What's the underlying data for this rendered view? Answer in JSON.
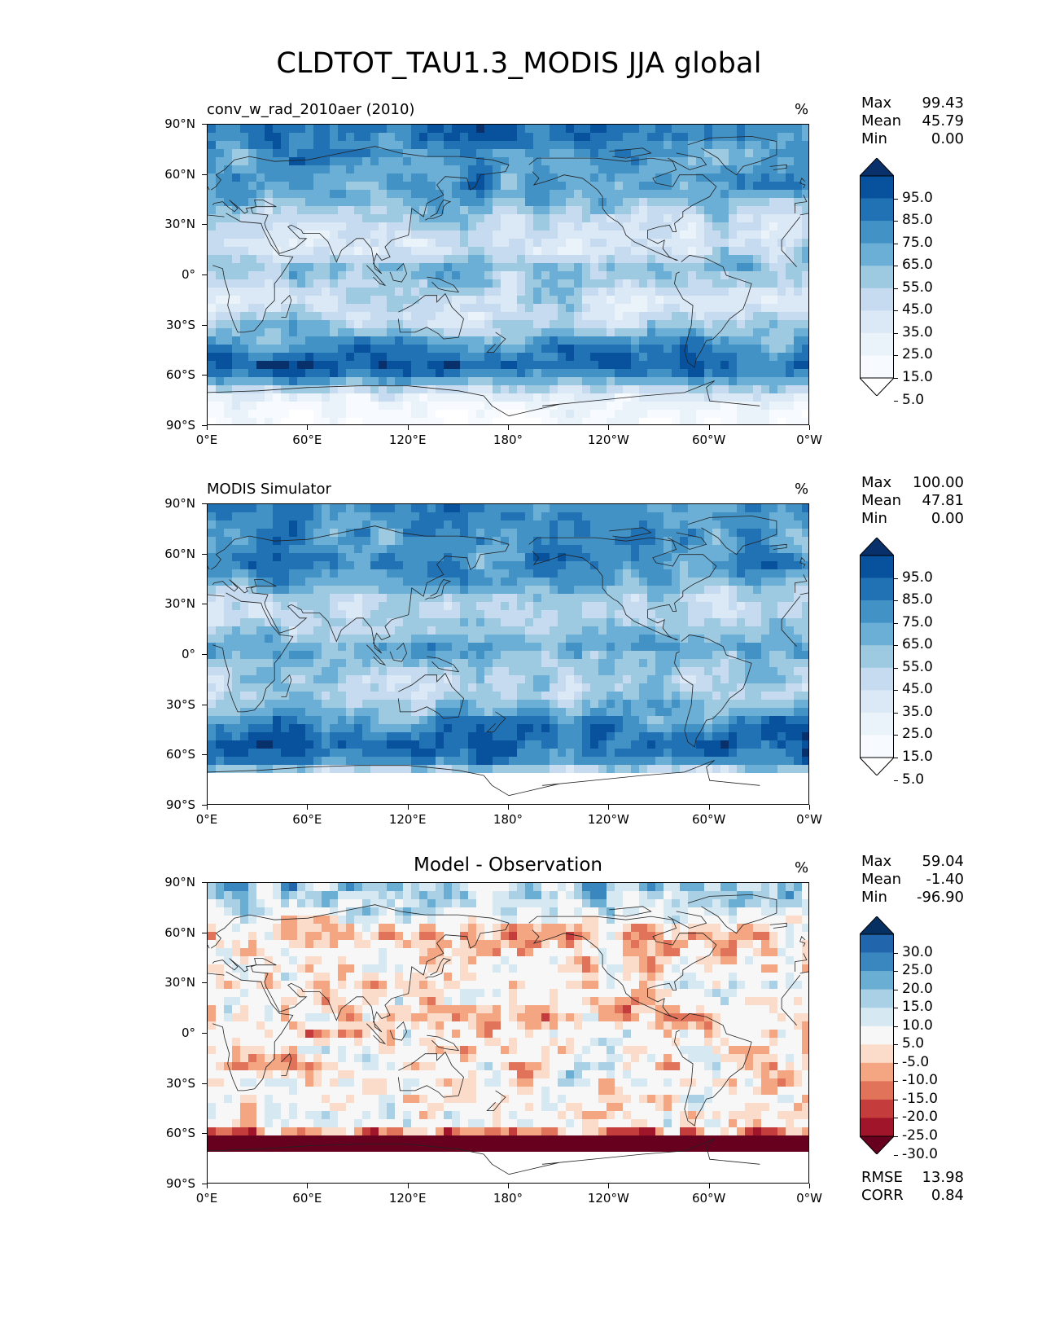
{
  "title": "CLDTOT_TAU1.3_MODIS JJA global",
  "y_tick_labels": [
    "90°N",
    "60°N",
    "30°N",
    "0°",
    "30°S",
    "60°S",
    "90°S"
  ],
  "x_tick_labels": [
    "0°E",
    "60°E",
    "120°E",
    "180°",
    "120°W",
    "60°W",
    "0°W"
  ],
  "panels": [
    {
      "id": "test",
      "subtitle": "conv_w_rad_2010aer (2010)",
      "subtitle_style": "left",
      "units": "%",
      "stats": [
        {
          "label": "Max",
          "value": "99.43"
        },
        {
          "label": "Mean",
          "value": "45.79"
        },
        {
          "label": "Min",
          "value": "0.00"
        }
      ],
      "colorbar": {
        "labels": [
          "95.0",
          "85.0",
          "75.0",
          "65.0",
          "55.0",
          "45.0",
          "35.0",
          "25.0",
          "15.0",
          "5.0"
        ],
        "colors": [
          "#08306b",
          "#08519c",
          "#2171b5",
          "#4292c6",
          "#6baed6",
          "#9ecae1",
          "#c6dbef",
          "#dbe9f6",
          "#eaf2fa",
          "#f7fbff",
          "#ffffff"
        ]
      }
    },
    {
      "id": "reference",
      "subtitle": "MODIS Simulator",
      "subtitle_style": "left",
      "units": "%",
      "stats": [
        {
          "label": "Max",
          "value": "100.00"
        },
        {
          "label": "Mean",
          "value": "47.81"
        },
        {
          "label": "Min",
          "value": "0.00"
        }
      ],
      "colorbar": {
        "labels": [
          "95.0",
          "85.0",
          "75.0",
          "65.0",
          "55.0",
          "45.0",
          "35.0",
          "25.0",
          "15.0",
          "5.0"
        ],
        "colors": [
          "#08306b",
          "#08519c",
          "#2171b5",
          "#4292c6",
          "#6baed6",
          "#9ecae1",
          "#c6dbef",
          "#dbe9f6",
          "#eaf2fa",
          "#f7fbff",
          "#ffffff"
        ]
      }
    },
    {
      "id": "difference",
      "subtitle": "Model - Observation",
      "subtitle_style": "center",
      "units": "%",
      "stats": [
        {
          "label": "Max",
          "value": "59.04"
        },
        {
          "label": "Mean",
          "value": "-1.40"
        },
        {
          "label": "Min",
          "value": "-96.90"
        }
      ],
      "colorbar": {
        "labels": [
          "30.0",
          "25.0",
          "20.0",
          "15.0",
          "10.0",
          "5.0",
          "-5.0",
          "-10.0",
          "-15.0",
          "-20.0",
          "-25.0",
          "-30.0"
        ],
        "colors": [
          "#053061",
          "#2166ac",
          "#3a87c0",
          "#6aaed3",
          "#a9d0e5",
          "#d6e8f2",
          "#f7f7f7",
          "#fbdcca",
          "#f4a582",
          "#e0735a",
          "#c43c3c",
          "#a1152a",
          "#67001f"
        ]
      },
      "extra_stats": [
        {
          "label": "RMSE",
          "value": "13.98"
        },
        {
          "label": "CORR",
          "value": "0.84"
        }
      ]
    }
  ],
  "chart_data": [
    {
      "type": "heatmap",
      "title": "conv_w_rad_2010aer (2010)",
      "variable": "CLDTOT_TAU1.3_MODIS JJA global",
      "units": "%",
      "x": [
        "0°E",
        "60°E",
        "120°E",
        "180°",
        "120°W",
        "60°W",
        "0°W"
      ],
      "y": [
        "90°N",
        "60°N",
        "30°N",
        "0°",
        "30°S",
        "60°S",
        "90°S"
      ],
      "xlim": [
        0,
        360
      ],
      "ylim": [
        -90,
        90
      ],
      "levels": [
        5,
        15,
        25,
        35,
        45,
        55,
        65,
        75,
        85,
        95
      ],
      "zonal_profile": {
        "lat": [
          85,
          75,
          65,
          55,
          45,
          35,
          25,
          15,
          5,
          -5,
          -15,
          -25,
          -35,
          -45,
          -55,
          -65,
          -75,
          -85
        ],
        "value": [
          80,
          70,
          65,
          68,
          60,
          42,
          35,
          40,
          55,
          48,
          38,
          40,
          55,
          75,
          85,
          55,
          18,
          8
        ]
      },
      "max": 99.43,
      "mean": 45.79,
      "min": 0.0
    },
    {
      "type": "heatmap",
      "title": "MODIS Simulator",
      "variable": "CLDTOT_TAU1.3_MODIS JJA global",
      "units": "%",
      "x": [
        "0°E",
        "60°E",
        "120°E",
        "180°",
        "120°W",
        "60°W",
        "0°W"
      ],
      "y": [
        "90°N",
        "60°N",
        "30°N",
        "0°",
        "30°S",
        "60°S",
        "90°S"
      ],
      "xlim": [
        0,
        360
      ],
      "ylim": [
        -90,
        90
      ],
      "levels": [
        5,
        15,
        25,
        35,
        45,
        55,
        65,
        75,
        85,
        95
      ],
      "zonal_profile": {
        "lat": [
          85,
          75,
          65,
          55,
          45,
          35,
          25,
          15,
          5,
          -5,
          -15,
          -25,
          -35,
          -45,
          -55,
          -65,
          -75,
          -85
        ],
        "value": [
          72,
          68,
          68,
          72,
          65,
          45,
          40,
          48,
          60,
          50,
          42,
          45,
          60,
          78,
          85,
          70,
          0,
          0
        ]
      },
      "max": 100.0,
      "mean": 47.81,
      "min": 0.0
    },
    {
      "type": "heatmap",
      "title": "Model - Observation",
      "variable": "CLDTOT_TAU1.3_MODIS JJA global",
      "units": "%",
      "x": [
        "0°E",
        "60°E",
        "120°E",
        "180°",
        "120°W",
        "60°W",
        "0°W"
      ],
      "y": [
        "90°N",
        "60°N",
        "30°N",
        "0°",
        "30°S",
        "60°S",
        "90°S"
      ],
      "xlim": [
        0,
        360
      ],
      "ylim": [
        -90,
        90
      ],
      "levels": [
        -30,
        -25,
        -20,
        -15,
        -10,
        -5,
        5,
        10,
        15,
        20,
        25,
        30
      ],
      "zonal_profile": {
        "lat": [
          85,
          75,
          65,
          55,
          45,
          35,
          25,
          15,
          5,
          -5,
          -15,
          -25,
          -35,
          -45,
          -55,
          -65,
          -75,
          -85
        ],
        "value": [
          12,
          8,
          -3,
          -8,
          -6,
          -4,
          -3,
          -5,
          -5,
          -2,
          -3,
          -4,
          -3,
          -2,
          0,
          -40,
          0,
          0
        ]
      },
      "max": 59.04,
      "mean": -1.4,
      "min": -96.9,
      "rmse": 13.98,
      "corr": 0.84
    }
  ]
}
